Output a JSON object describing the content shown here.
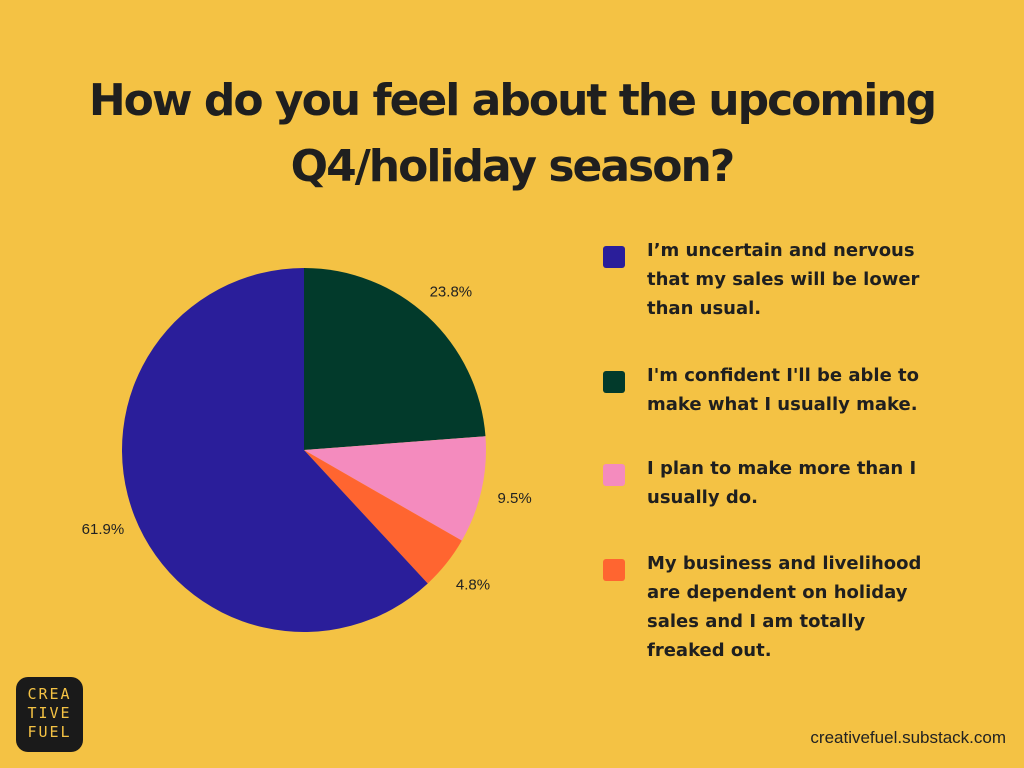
{
  "title_lines": [
    "How do you feel about the upcoming",
    "Q4/holiday season?"
  ],
  "chart_data": {
    "type": "pie",
    "title": "How do you feel about the upcoming Q4/holiday season?",
    "categories": [
      "I'm confident I'll be able to make what I usually make.",
      "I plan to make more than I usually do.",
      "My business and livelihood are dependent on holiday sales and I am totally freaked out.",
      "I’m uncertain and nervous that my sales will be lower than usual."
    ],
    "values": [
      23.8,
      9.5,
      4.8,
      61.9
    ],
    "value_labels": [
      "23.8%",
      "9.5%",
      "4.8%",
      "61.9%"
    ],
    "colors": [
      "#023A2B",
      "#F48BBE",
      "#FF6530",
      "#2A1E9A"
    ],
    "start": "top",
    "direction": "clockwise",
    "legend_position": "right"
  },
  "legend": [
    {
      "label": "I’m uncertain and nervous that my sales will be lower than usual.",
      "color": "#2A1E9A"
    },
    {
      "label": "I'm confident I'll be able to make what I usually make.",
      "color": "#023A2B"
    },
    {
      "label": "I plan to make more than I usually do.",
      "color": "#F48BBE"
    },
    {
      "label": "My business and livelihood are dependent on holiday sales and I am totally freaked out.",
      "color": "#FF6530"
    }
  ],
  "logo_lines": [
    "CREA",
    "TIVE",
    "FUEL"
  ],
  "footer": "creativefuel.substack.com"
}
